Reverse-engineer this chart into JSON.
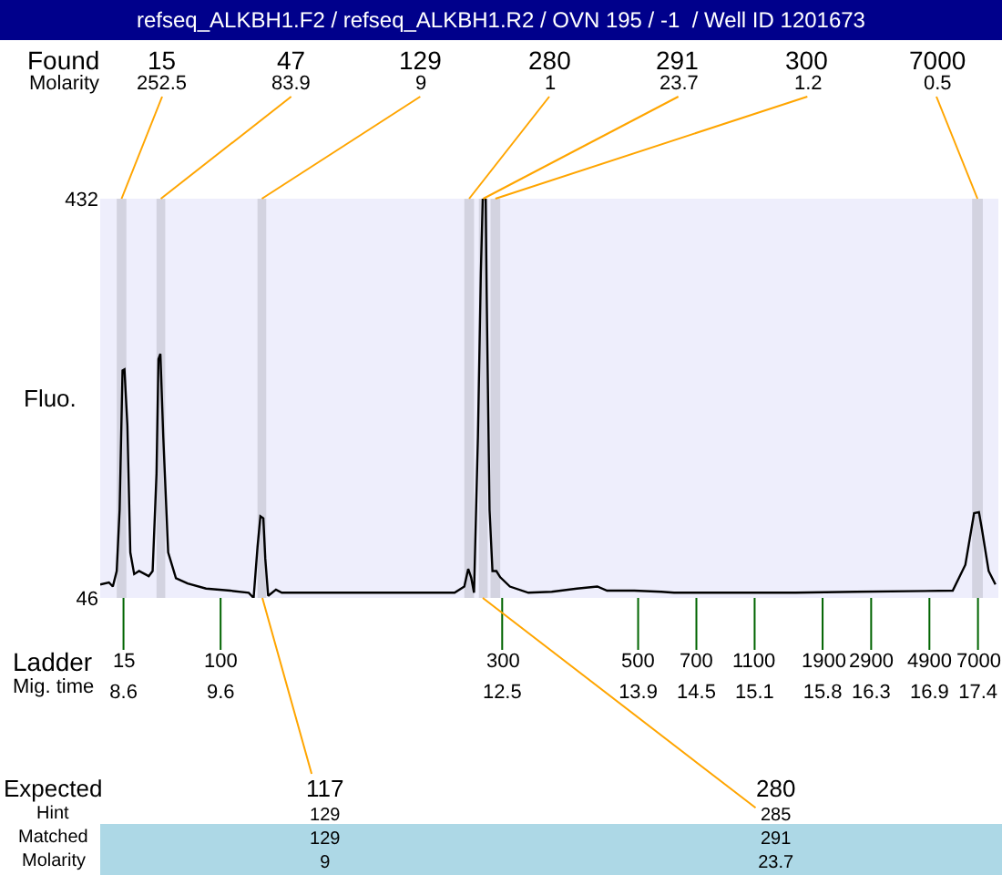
{
  "chart_data": {
    "type": "line",
    "title": "refseq_ALKBH1.F2 / refseq_ALKBH1.R2 / OVN 195 / -1  / Well ID 1201673",
    "ylabel": "Fluo.",
    "xlim": [
      8.36,
      17.61
    ],
    "ylim": [
      46,
      432
    ],
    "yticks": [
      46,
      432
    ],
    "xticks": [
      8.6,
      9.6,
      12.5,
      13.9,
      14.5,
      15.1,
      15.8,
      16.3,
      16.9,
      17.4
    ],
    "series": [
      {
        "color": "#000000",
        "x": [
          8.36,
          8.45,
          8.49,
          8.53,
          8.56,
          8.59,
          8.61,
          8.64,
          8.67,
          8.71,
          8.76,
          8.86,
          8.9,
          8.94,
          8.96,
          8.98,
          9.01,
          9.06,
          9.14,
          9.26,
          9.45,
          9.7,
          9.89,
          9.94,
          9.98,
          10.01,
          10.04,
          10.06,
          10.09,
          10.17,
          10.23,
          11.08,
          12.01,
          12.11,
          12.15,
          12.18,
          12.21,
          12.25,
          12.28,
          12.3,
          12.33,
          12.34,
          12.37,
          12.4,
          12.44,
          12.48,
          12.58,
          12.77,
          13.01,
          13.27,
          13.48,
          13.58,
          13.86,
          14.14,
          14.27,
          15.52,
          16.14,
          17.14,
          17.27,
          17.36,
          17.41,
          17.44,
          17.51,
          17.58
        ],
        "values": [
          59,
          61,
          57,
          72,
          131,
          266,
          267,
          213,
          90,
          69,
          72,
          67,
          72,
          166,
          277,
          282,
          201,
          90,
          65,
          60,
          55,
          53,
          51,
          46,
          95,
          125,
          123,
          84,
          48,
          54,
          51,
          51,
          51,
          57,
          74,
          66,
          51,
          201,
          360,
          432,
          432,
          342,
          131,
          72,
          72,
          66,
          57,
          51,
          52,
          55,
          57,
          53,
          53,
          52,
          51,
          51,
          52,
          53,
          78,
          128,
          129,
          113,
          72,
          59
        ]
      }
    ],
    "bands": [
      {
        "axis": "x",
        "from": 8.53,
        "to": 8.63,
        "label": "15\n252.5",
        "color": "#d3d3e0"
      },
      {
        "axis": "x",
        "from": 8.94,
        "to": 9.03,
        "label": "47\n83.9",
        "color": "#d3d3e0"
      },
      {
        "axis": "x",
        "from": 9.98,
        "to": 10.07,
        "label": "129\n9",
        "color": "#d3d3e0"
      },
      {
        "axis": "x",
        "from": 12.11,
        "to": 12.21,
        "label": "280\n1",
        "color": "#d3d3e0"
      },
      {
        "axis": "x",
        "from": 12.26,
        "to": 12.35,
        "label": "291\n23.7",
        "color": "#d3d3e0"
      },
      {
        "axis": "x",
        "from": 12.38,
        "to": 12.48,
        "label": "300\n1.2",
        "color": "#d3d3e0"
      },
      {
        "axis": "x",
        "from": 17.34,
        "to": 17.45,
        "label": "7000\n0.5",
        "color": "#d3d3e0"
      }
    ],
    "annotations": [
      "Found\nMolarity",
      "Ladder\nMig. time",
      "Expected\nHint\nMatched\nMolarity",
      {
        "text": "15",
        "x": 8.6,
        "y": 46
      },
      {
        "text": "100",
        "x": 9.6,
        "y": 46
      },
      {
        "text": "300",
        "x": 12.5,
        "y": 46
      },
      {
        "text": "500",
        "x": 13.9,
        "y": 46
      },
      {
        "text": "700",
        "x": 14.5,
        "y": 46
      },
      {
        "text": "1100",
        "x": 15.1,
        "y": 46
      },
      {
        "text": "1900",
        "x": 15.8,
        "y": 46
      },
      {
        "text": "2900",
        "x": 16.3,
        "y": 46
      },
      {
        "text": "4900",
        "x": 16.9,
        "y": 46
      },
      {
        "text": "7000",
        "x": 17.4,
        "y": 46
      },
      {
        "text": "117\n129\n129\n9",
        "x": 10.03,
        "y": 46
      },
      {
        "text": "280\n285\n291\n23.7",
        "x": 12.3,
        "y": 46
      }
    ],
    "grid": false,
    "marker": "none",
    "line_style": "solid"
  }
}
